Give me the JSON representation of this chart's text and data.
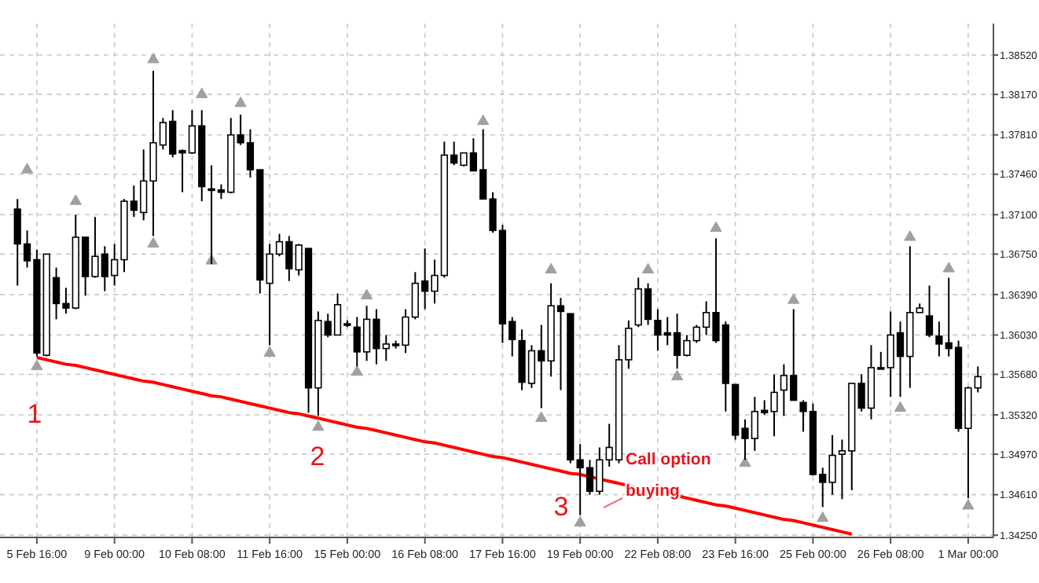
{
  "chart_data": {
    "type": "candlestick",
    "color": "#000000",
    "categories": [
      null,
      null,
      "5 Feb 16:00",
      null,
      null,
      null,
      null,
      null,
      null,
      null,
      "9 Feb 00:00",
      null,
      null,
      null,
      null,
      null,
      null,
      null,
      "10 Feb 08:00",
      null,
      null,
      null,
      null,
      null,
      null,
      null,
      "11 Feb 16:00",
      null,
      null,
      null,
      null,
      null,
      null,
      null,
      "15 Feb 00:00",
      null,
      null,
      null,
      null,
      null,
      null,
      null,
      "16 Feb 08:00",
      null,
      null,
      null,
      null,
      null,
      null,
      null,
      "17 Feb 16:00",
      null,
      null,
      null,
      null,
      null,
      null,
      null,
      "19 Feb 00:00",
      null,
      null,
      null,
      null,
      null,
      null,
      null,
      "22 Feb 08:00",
      null,
      null,
      null,
      null,
      null,
      null,
      null,
      "23 Feb 16:00",
      null,
      null,
      null,
      null,
      null,
      null,
      null,
      "25 Feb 00:00",
      null,
      null,
      null,
      null,
      null,
      null,
      null,
      "26 Feb 08:00",
      null,
      null,
      null,
      null,
      null,
      null,
      null,
      "1 Mar 00:00",
      null
    ],
    "ohlc": [
      [
        1.3715,
        1.3724,
        1.3647,
        1.3684
      ],
      [
        1.3684,
        1.3696,
        1.3663,
        1.3669
      ],
      [
        1.367,
        1.3679,
        1.3584,
        1.3587
      ],
      [
        1.3585,
        1.3675,
        1.3584,
        1.3675
      ],
      [
        1.3654,
        1.3663,
        1.3617,
        1.3631
      ],
      [
        1.3631,
        1.3645,
        1.3622,
        1.3627
      ],
      [
        1.3627,
        1.371,
        1.3626,
        1.369
      ],
      [
        1.369,
        1.369,
        1.3638,
        1.3655
      ],
      [
        1.3655,
        1.3708,
        1.3654,
        1.3673
      ],
      [
        1.3675,
        1.3682,
        1.3642,
        1.3655
      ],
      [
        1.3656,
        1.3684,
        1.3647,
        1.367
      ],
      [
        1.367,
        1.3724,
        1.3659,
        1.3722
      ],
      [
        1.3722,
        1.3736,
        1.3708,
        1.3714
      ],
      [
        1.3712,
        1.3768,
        1.3705,
        1.374
      ],
      [
        1.374,
        1.3838,
        1.3691,
        1.3774
      ],
      [
        1.3772,
        1.3796,
        1.3768,
        1.3792
      ],
      [
        1.3793,
        1.3803,
        1.3761,
        1.3764
      ],
      [
        1.3767,
        1.3768,
        1.373,
        1.3765
      ],
      [
        1.3765,
        1.3803,
        1.3764,
        1.3789
      ],
      [
        1.3789,
        1.3803,
        1.3722,
        1.3735
      ],
      [
        1.3733,
        1.3754,
        1.3666,
        1.3732
      ],
      [
        1.3732,
        1.3737,
        1.3724,
        1.373
      ],
      [
        1.373,
        1.3796,
        1.3729,
        1.3781
      ],
      [
        1.3781,
        1.3799,
        1.3772,
        1.3774
      ],
      [
        1.3774,
        1.3786,
        1.3743,
        1.375
      ],
      [
        1.375,
        1.375,
        1.364,
        1.3652
      ],
      [
        1.3649,
        1.3684,
        1.3594,
        1.3675
      ],
      [
        1.3675,
        1.3693,
        1.3673,
        1.3686
      ],
      [
        1.3686,
        1.3691,
        1.3651,
        1.3662
      ],
      [
        1.3661,
        1.3684,
        1.3656,
        1.3683
      ],
      [
        1.368,
        1.368,
        1.3534,
        1.3556
      ],
      [
        1.3556,
        1.3624,
        1.3531,
        1.3616
      ],
      [
        1.3615,
        1.3622,
        1.3601,
        1.3603
      ],
      [
        1.3603,
        1.364,
        1.3603,
        1.363
      ],
      [
        1.3613,
        1.3616,
        1.361,
        1.3612
      ],
      [
        1.361,
        1.3619,
        1.3575,
        1.3588
      ],
      [
        1.3588,
        1.3629,
        1.358,
        1.3617
      ],
      [
        1.3617,
        1.3626,
        1.3577,
        1.3591
      ],
      [
        1.3591,
        1.3603,
        1.358,
        1.3595
      ],
      [
        1.3595,
        1.3598,
        1.3591,
        1.3594
      ],
      [
        1.3594,
        1.3626,
        1.3587,
        1.3619
      ],
      [
        1.3619,
        1.3659,
        1.3617,
        1.3649
      ],
      [
        1.3651,
        1.368,
        1.3626,
        1.3642
      ],
      [
        1.3642,
        1.367,
        1.3631,
        1.3656
      ],
      [
        1.3656,
        1.3775,
        1.3654,
        1.3763
      ],
      [
        1.3763,
        1.3775,
        1.3754,
        1.3756
      ],
      [
        1.3754,
        1.3765,
        1.3753,
        1.3765
      ],
      [
        1.3765,
        1.3778,
        1.3749,
        1.3749
      ],
      [
        1.375,
        1.3786,
        1.3724,
        1.3724
      ],
      [
        1.3724,
        1.373,
        1.3694,
        1.3696
      ],
      [
        1.3696,
        1.3701,
        1.3596,
        1.3613
      ],
      [
        1.3615,
        1.3619,
        1.3584,
        1.3599
      ],
      [
        1.3598,
        1.3608,
        1.3554,
        1.3561
      ],
      [
        1.356,
        1.3594,
        1.3556,
        1.3589
      ],
      [
        1.3589,
        1.3612,
        1.3538,
        1.358
      ],
      [
        1.358,
        1.3649,
        1.3566,
        1.3629
      ],
      [
        1.3629,
        1.3636,
        1.3554,
        1.3624
      ],
      [
        1.3622,
        1.3622,
        1.3489,
        1.3492
      ],
      [
        1.3492,
        1.3506,
        1.3443,
        1.3485
      ],
      [
        1.3485,
        1.3492,
        1.3461,
        1.3464
      ],
      [
        1.3464,
        1.3503,
        1.3461,
        1.3492
      ],
      [
        1.3492,
        1.3524,
        1.3486,
        1.3503
      ],
      [
        1.3492,
        1.3594,
        1.3489,
        1.3581
      ],
      [
        1.3581,
        1.3616,
        1.3573,
        1.3609
      ],
      [
        1.3612,
        1.3654,
        1.361,
        1.3644
      ],
      [
        1.3644,
        1.3649,
        1.3612,
        1.3617
      ],
      [
        1.3616,
        1.3626,
        1.3589,
        1.3603
      ],
      [
        1.3605,
        1.3619,
        1.3594,
        1.3603
      ],
      [
        1.3605,
        1.3622,
        1.3573,
        1.3585
      ],
      [
        1.3585,
        1.3603,
        1.3584,
        1.3598
      ],
      [
        1.3598,
        1.3612,
        1.3596,
        1.361
      ],
      [
        1.361,
        1.3633,
        1.3603,
        1.3623
      ],
      [
        1.3623,
        1.3689,
        1.3596,
        1.3598
      ],
      [
        1.3612,
        1.3615,
        1.3535,
        1.356
      ],
      [
        1.3559,
        1.3559,
        1.351,
        1.3514
      ],
      [
        1.352,
        1.3528,
        1.3492,
        1.3511
      ],
      [
        1.3511,
        1.3548,
        1.35,
        1.3535
      ],
      [
        1.3536,
        1.3545,
        1.3532,
        1.3534
      ],
      [
        1.3535,
        1.3568,
        1.3513,
        1.3552
      ],
      [
        1.3554,
        1.3577,
        1.3531,
        1.3567
      ],
      [
        1.3567,
        1.3626,
        1.3545,
        1.3545
      ],
      [
        1.3543,
        1.3545,
        1.3517,
        1.3535
      ],
      [
        1.3535,
        1.3542,
        1.3478,
        1.3479
      ],
      [
        1.3479,
        1.3485,
        1.345,
        1.3472
      ],
      [
        1.3472,
        1.3514,
        1.3461,
        1.3496
      ],
      [
        1.3497,
        1.351,
        1.3457,
        1.35
      ],
      [
        1.35,
        1.356,
        1.3465,
        1.356
      ],
      [
        1.356,
        1.3568,
        1.3535,
        1.3538
      ],
      [
        1.3538,
        1.3594,
        1.3528,
        1.3574
      ],
      [
        1.3574,
        1.3588,
        1.3573,
        1.3573
      ],
      [
        1.3574,
        1.3624,
        1.3548,
        1.3603
      ],
      [
        1.3605,
        1.3615,
        1.3548,
        1.3584
      ],
      [
        1.3584,
        1.3682,
        1.3556,
        1.3623
      ],
      [
        1.3623,
        1.3631,
        1.3623,
        1.3627
      ],
      [
        1.362,
        1.3647,
        1.3601,
        1.3603
      ],
      [
        1.3602,
        1.3615,
        1.3584,
        1.3595
      ],
      [
        1.3596,
        1.3654,
        1.3584,
        1.3591
      ],
      [
        1.3592,
        1.3598,
        1.3517,
        1.352
      ],
      [
        1.352,
        1.3557,
        1.3458,
        1.3556
      ],
      [
        1.3556,
        1.3575,
        1.3552,
        1.3566
      ]
    ],
    "series": [
      {
        "type": "scatter",
        "color": "#a0a0a0",
        "marker": "triangle",
        "values": [
          null,
          1.375,
          null,
          null,
          null,
          null,
          1.3722,
          null,
          null,
          null,
          null,
          null,
          null,
          null,
          1.3848,
          null,
          null,
          null,
          null,
          1.3817,
          null,
          null,
          null,
          1.3809,
          null,
          null,
          null,
          null,
          null,
          null,
          null,
          null,
          null,
          null,
          null,
          null,
          1.3638,
          null,
          null,
          null,
          null,
          null,
          null,
          null,
          null,
          null,
          null,
          null,
          1.3793,
          null,
          null,
          null,
          null,
          null,
          null,
          1.3661,
          null,
          null,
          null,
          null,
          null,
          null,
          null,
          null,
          null,
          1.3661,
          null,
          null,
          null,
          null,
          null,
          null,
          1.3698,
          null,
          null,
          null,
          null,
          null,
          null,
          null,
          1.3634,
          null,
          null,
          null,
          null,
          null,
          null,
          null,
          null,
          null,
          null,
          null,
          1.369,
          null,
          null,
          null,
          1.3662,
          null,
          null,
          null
        ]
      },
      {
        "type": "scatter",
        "color": "#a0a0a0",
        "marker": "triangle",
        "values": [
          null,
          null,
          1.3575,
          null,
          null,
          null,
          null,
          null,
          null,
          null,
          null,
          null,
          null,
          null,
          1.3684,
          null,
          null,
          null,
          null,
          null,
          1.3669,
          null,
          null,
          null,
          null,
          null,
          1.3587,
          null,
          null,
          null,
          null,
          1.3521,
          null,
          null,
          null,
          1.357,
          null,
          null,
          null,
          null,
          null,
          null,
          null,
          null,
          null,
          null,
          null,
          null,
          null,
          null,
          null,
          null,
          null,
          null,
          1.3529,
          null,
          null,
          null,
          1.3436,
          null,
          null,
          null,
          null,
          null,
          null,
          null,
          null,
          null,
          1.3566,
          null,
          null,
          null,
          null,
          null,
          null,
          1.3489,
          null,
          null,
          null,
          null,
          null,
          null,
          null,
          1.344,
          null,
          null,
          null,
          null,
          null,
          null,
          null,
          1.3538,
          null,
          null,
          null,
          null,
          null,
          null,
          1.3451,
          null
        ]
      },
      {
        "type": "line",
        "color": "#ff0000",
        "values": [
          null,
          null,
          1.3583,
          1.3581,
          1.3579,
          1.3577,
          1.3576,
          1.3574,
          1.3572,
          1.357,
          1.3568,
          1.3566,
          1.3564,
          1.3562,
          1.3561,
          1.3559,
          1.3557,
          1.3555,
          1.3553,
          1.3551,
          1.3549,
          1.3548,
          1.3546,
          1.3544,
          1.3542,
          1.354,
          1.3538,
          1.3536,
          1.3534,
          1.3533,
          1.3531,
          1.3529,
          1.3527,
          1.3525,
          1.3523,
          1.3521,
          1.352,
          1.3518,
          1.3516,
          1.3514,
          1.3512,
          1.351,
          1.3508,
          1.3507,
          1.3505,
          1.3503,
          1.3501,
          1.3499,
          1.3497,
          1.3495,
          1.3494,
          1.3492,
          1.349,
          1.3488,
          1.3486,
          1.3484,
          1.3482,
          1.348,
          1.3479,
          1.3477,
          1.3475,
          1.3473,
          1.3471,
          1.3469,
          1.3467,
          1.3466,
          1.3464,
          1.3462,
          1.346,
          1.3458,
          1.3456,
          1.3454,
          1.3452,
          1.3451,
          1.3449,
          1.3447,
          1.3445,
          1.3443,
          1.3441,
          1.3439,
          1.3438,
          1.3436,
          1.3434,
          1.3432,
          1.343,
          1.3428,
          1.3426,
          null,
          null,
          null,
          null,
          null,
          null,
          null,
          null,
          null,
          null,
          null,
          null,
          null
        ]
      }
    ],
    "annotations": [
      "1",
      "2",
      "3",
      "Call option\nbuying"
    ],
    "ylim": [
      1.3423,
      1.388
    ],
    "yticks": [
      {
        "value": 1.3425,
        "label": "1.34250"
      },
      {
        "value": 1.3461,
        "label": "1.34610"
      },
      {
        "value": 1.3497,
        "label": "1.34970"
      },
      {
        "value": 1.3532,
        "label": "1.35320"
      },
      {
        "value": 1.3568,
        "label": "1.35680"
      },
      {
        "value": 1.3603,
        "label": "1.36030"
      },
      {
        "value": 1.3639,
        "label": "1.36390"
      },
      {
        "value": 1.3675,
        "label": "1.36750"
      },
      {
        "value": 1.371,
        "label": "1.37100"
      },
      {
        "value": 1.3746,
        "label": "1.37460"
      },
      {
        "value": 1.3781,
        "label": "1.37810"
      },
      {
        "value": 1.3817,
        "label": "1.38170"
      },
      {
        "value": 1.3852,
        "label": "1.38520"
      }
    ],
    "grid": true
  }
}
